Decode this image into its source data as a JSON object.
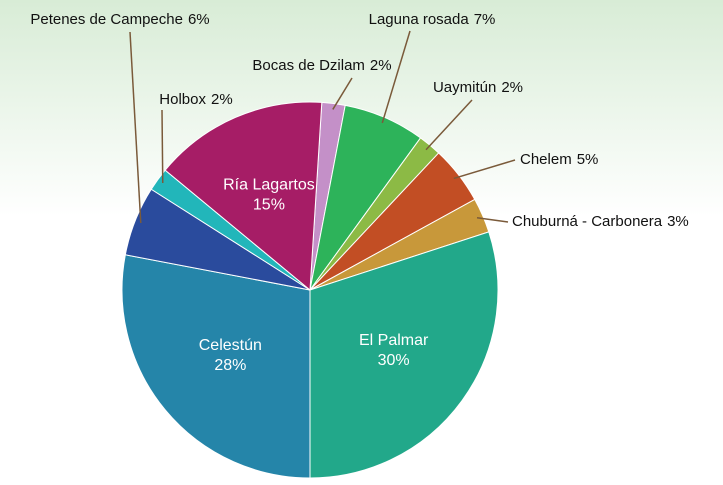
{
  "chart_data": {
    "type": "pie",
    "categories": [
      "Bocas de Dzilam",
      "Laguna rosada",
      "Uaymitún",
      "Chelem",
      "Chuburná - Carbonera",
      "El Palmar",
      "Celestún",
      "Petenes de Campeche",
      "Holbox",
      "Ría Lagartos"
    ],
    "values": [
      2,
      7,
      2,
      5,
      3,
      30,
      28,
      6,
      2,
      15
    ],
    "value_labels": [
      "2%",
      "7%",
      "2%",
      "5%",
      "3%",
      "30%",
      "28%",
      "6%",
      "2%",
      "15%"
    ],
    "colors": [
      "#c490c8",
      "#2db35a",
      "#8cba45",
      "#c24e24",
      "#c8983a",
      "#22a88a",
      "#2585a9",
      "#2a4b9d",
      "#22b6ba",
      "#a61d66"
    ]
  }
}
